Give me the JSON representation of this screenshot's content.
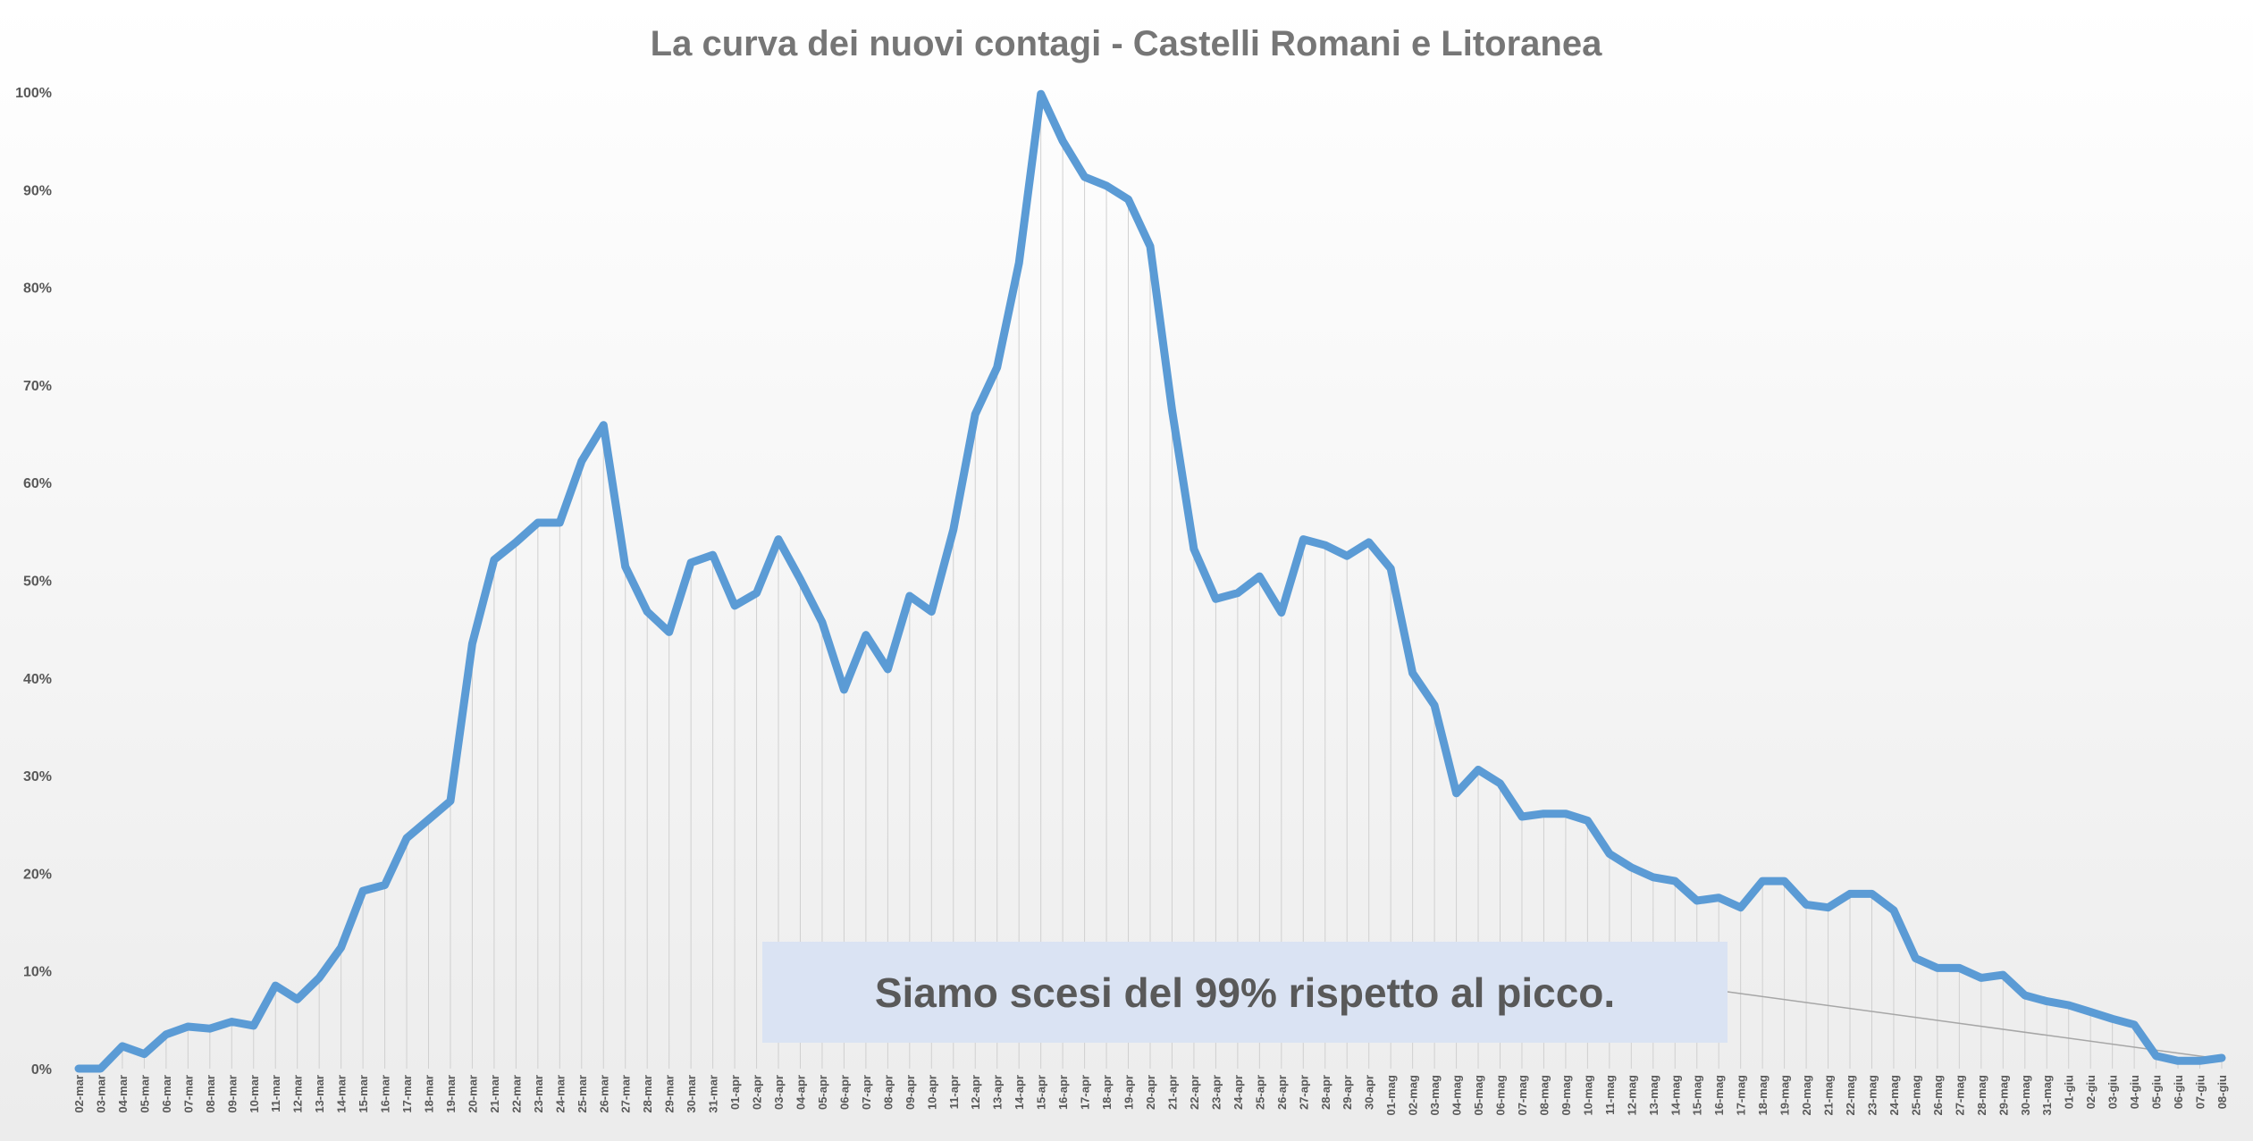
{
  "chart_data": {
    "type": "line",
    "title": "La curva dei nuovi contagi - Castelli Romani e Litoranea",
    "xlabel": "",
    "ylabel": "",
    "ylim": [
      0,
      100
    ],
    "yticks": [
      "0%",
      "10%",
      "20%",
      "30%",
      "40%",
      "50%",
      "60%",
      "70%",
      "80%",
      "90%",
      "100%"
    ],
    "grid": "vertical drop lines",
    "legend": "none",
    "categories": [
      "02-mar",
      "03-mar",
      "04-mar",
      "05-mar",
      "06-mar",
      "07-mar",
      "08-mar",
      "09-mar",
      "10-mar",
      "11-mar",
      "12-mar",
      "13-mar",
      "14-mar",
      "15-mar",
      "16-mar",
      "17-mar",
      "18-mar",
      "19-mar",
      "20-mar",
      "21-mar",
      "22-mar",
      "23-mar",
      "24-mar",
      "25-mar",
      "26-mar",
      "27-mar",
      "28-mar",
      "29-mar",
      "30-mar",
      "31-mar",
      "01-apr",
      "02-apr",
      "03-apr",
      "04-apr",
      "05-apr",
      "06-apr",
      "07-apr",
      "08-apr",
      "09-apr",
      "10-apr",
      "11-apr",
      "12-apr",
      "13-apr",
      "14-apr",
      "15-apr",
      "16-apr",
      "17-apr",
      "18-apr",
      "19-apr",
      "20-apr",
      "21-apr",
      "22-apr",
      "23-apr",
      "24-apr",
      "25-apr",
      "26-apr",
      "27-apr",
      "28-apr",
      "29-apr",
      "30-apr",
      "01-mag",
      "02-mag",
      "03-mag",
      "04-mag",
      "05-mag",
      "06-mag",
      "07-mag",
      "08-mag",
      "09-mag",
      "10-mag",
      "11-mag",
      "12-mag",
      "13-mag",
      "14-mag",
      "15-mag",
      "16-mag",
      "17-mag",
      "18-mag",
      "19-mag",
      "20-mag",
      "21-mag",
      "22-mag",
      "23-mag",
      "24-mag",
      "25-mag",
      "26-mag",
      "27-mag",
      "28-mag",
      "29-mag",
      "30-mag",
      "31-mag",
      "01-giu",
      "02-giu",
      "03-giu",
      "04-giu",
      "05-giu",
      "06-giu",
      "07-giu",
      "08-giu"
    ],
    "series": [
      {
        "values": [
          0,
          0,
          2.3,
          1.5,
          3.5,
          4.3,
          4.1,
          4.8,
          4.4,
          8.5,
          7.1,
          9.3,
          12.4,
          18.2,
          18.8,
          23.6,
          25.5,
          27.4,
          43.5,
          52.1,
          53.9,
          55.9,
          55.9,
          62.2,
          65.9,
          51.4,
          46.8,
          44.7,
          51.8,
          52.6,
          47.4,
          48.7,
          54.2,
          50.1,
          45.7,
          38.8,
          44.4,
          40.9,
          48.4,
          46.8,
          55.2,
          67.0,
          71.8,
          82.5,
          99.8,
          95.0,
          91.3,
          90.4,
          89.0,
          84.2,
          67.4,
          53.2,
          48.1,
          48.7,
          50.4,
          46.7,
          54.2,
          53.6,
          52.5,
          53.9,
          51.2,
          40.5,
          37.2,
          28.2,
          30.6,
          29.2,
          25.8,
          26.1,
          26.1,
          25.4,
          22.0,
          20.6,
          19.6,
          19.2,
          17.2,
          17.5,
          16.5,
          19.2,
          19.2,
          16.8,
          16.5,
          17.9,
          17.9,
          16.2,
          11.3,
          10.3,
          10.3,
          9.3,
          9.6,
          7.5,
          6.9,
          6.5,
          5.8,
          5.1,
          4.5,
          1.3,
          0.8,
          0.8,
          1.1
        ]
      }
    ],
    "annotation": {
      "text": "Siamo scesi del 99% rispetto al picco."
    },
    "colors": {
      "line": "#5b9bd5",
      "annotation_box": "#dae3f3",
      "drop_line": "#d0d0d0",
      "title": "#767676",
      "tick": "#595959"
    }
  }
}
